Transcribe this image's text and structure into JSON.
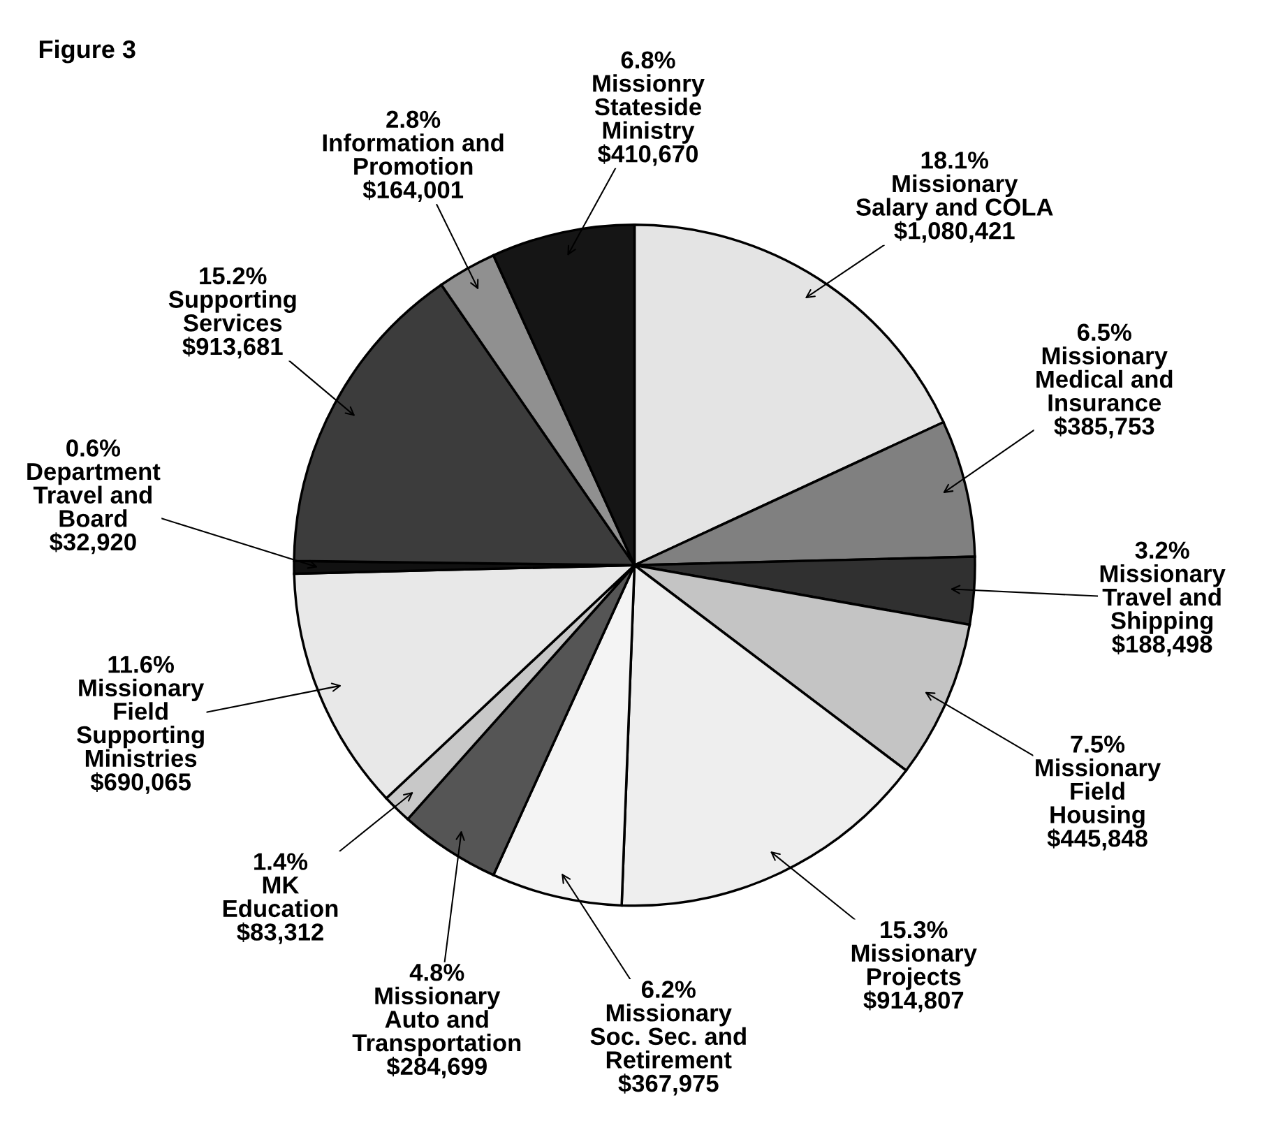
{
  "chart_data": {
    "type": "pie",
    "title": "Figure 3",
    "categories": [
      "Missionary\nSalary and COLA",
      "Missionary\nMedical and\nInsurance",
      "Missionary\nTravel and\nShipping",
      "Missionary\nField\nHousing",
      "Missionary\nProjects",
      "Missionary\nSoc. Sec. and\nRetirement",
      "Missionary\nAuto and\nTransportation",
      "MK\nEducation",
      "Missionary\nField\nSupporting\nMinistries",
      "Department\nTravel and\nBoard",
      "Supporting\nServices",
      "Information and\nPromotion",
      "Missionry\nStateside\nMinistry"
    ],
    "values": [
      18.1,
      6.5,
      3.2,
      7.5,
      15.3,
      6.2,
      4.8,
      1.4,
      11.6,
      0.6,
      15.2,
      2.8,
      6.8
    ],
    "value_labels": [
      "18.1%",
      "6.5%",
      "3.2%",
      "7.5%",
      "15.3%",
      "6.2%",
      "4.8%",
      "1.4%",
      "11.6%",
      "0.6%",
      "15.2%",
      "2.8%",
      "6.8%"
    ],
    "annotations": [
      "$1,080,421",
      "$385,753",
      "$188,498",
      "$445,848",
      "$914,807",
      "$367,975",
      "$284,699",
      "$83,312",
      "$690,065",
      "$32,920",
      "$913,681",
      "$164,001",
      "$410,670"
    ],
    "colors": [
      "#e4e4e4",
      "#808080",
      "#303030",
      "#c4c4c4",
      "#eeeeee",
      "#f4f4f4",
      "#555555",
      "#c8c8c8",
      "#e8e8e8",
      "#111111",
      "#3c3c3c",
      "#909090",
      "#151515"
    ]
  }
}
